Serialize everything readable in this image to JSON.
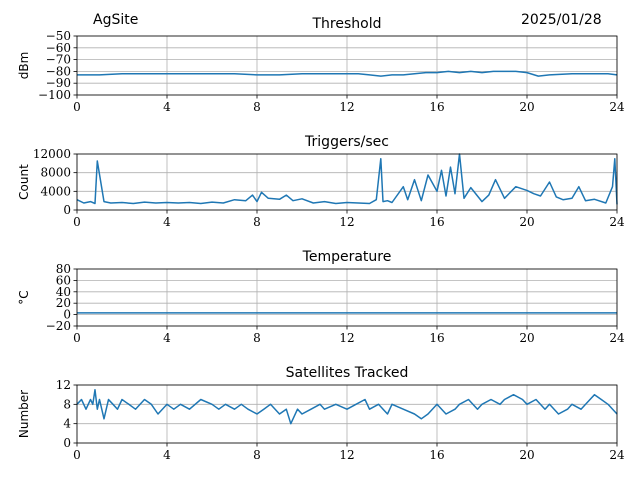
{
  "header": {
    "site": "AgSite",
    "date": "2025/01/28"
  },
  "style": {
    "line_color": "#1f77b4",
    "grid_color": "#b0b0b0"
  },
  "chart_data": [
    {
      "type": "line",
      "title": "Threshold",
      "ylabel": "dBm",
      "xlabel": "",
      "xlim": [
        0,
        24
      ],
      "ylim": [
        -100,
        -50
      ],
      "xticks": [
        "0",
        "4",
        "8",
        "12",
        "16",
        "20",
        "24"
      ],
      "yticks": [
        "−50",
        "−60",
        "−70",
        "−80",
        "−90",
        "−100"
      ],
      "ytick_values": [
        -50,
        -60,
        -70,
        -80,
        -90,
        -100
      ],
      "grid": true,
      "series": [
        {
          "x": [
            0,
            1,
            2,
            3,
            4,
            5,
            6,
            7,
            8,
            9,
            10,
            11,
            12,
            12.5,
            13,
            13.5,
            14,
            14.5,
            15,
            15.5,
            16,
            16.5,
            17,
            17.5,
            18,
            18.5,
            19,
            19.5,
            20,
            20.5,
            21,
            22,
            23,
            23.6,
            24
          ],
          "y": [
            -83,
            -83,
            -82,
            -82,
            -82,
            -82,
            -82,
            -82,
            -83,
            -83,
            -82,
            -82,
            -82,
            -82,
            -83,
            -84,
            -83,
            -83,
            -82,
            -81,
            -81,
            -80,
            -81,
            -80,
            -81,
            -80,
            -80,
            -80,
            -81,
            -84,
            -83,
            -82,
            -82,
            -82,
            -83
          ]
        }
      ]
    },
    {
      "type": "line",
      "title": "Triggers/sec",
      "ylabel": "Count",
      "xlabel": "",
      "xlim": [
        0,
        24
      ],
      "ylim": [
        0,
        12000
      ],
      "xticks": [
        "0",
        "4",
        "8",
        "12",
        "16",
        "20",
        "24"
      ],
      "yticks": [
        "0",
        "4000",
        "8000",
        "12000"
      ],
      "ytick_values": [
        0,
        4000,
        8000,
        12000
      ],
      "grid": true,
      "series": [
        {
          "x": [
            0,
            0.3,
            0.6,
            0.8,
            0.9,
            1.2,
            1.5,
            2,
            2.5,
            3,
            3.5,
            4,
            4.5,
            5,
            5.5,
            6,
            6.5,
            7,
            7.5,
            7.8,
            8,
            8.2,
            8.5,
            9,
            9.3,
            9.6,
            10,
            10.5,
            11,
            11.5,
            12,
            12.5,
            13,
            13.3,
            13.5,
            13.6,
            13.8,
            14,
            14.5,
            14.7,
            15,
            15.3,
            15.6,
            16,
            16.2,
            16.4,
            16.6,
            16.8,
            17,
            17.2,
            17.5,
            18,
            18.3,
            18.6,
            19,
            19.5,
            20,
            20.3,
            20.6,
            21,
            21.3,
            21.6,
            22,
            22.3,
            22.6,
            23,
            23.5,
            23.8,
            23.9,
            24
          ],
          "y": [
            2200,
            1500,
            1800,
            1400,
            10500,
            1800,
            1500,
            1600,
            1400,
            1700,
            1500,
            1600,
            1500,
            1600,
            1400,
            1700,
            1500,
            2200,
            2000,
            3200,
            1800,
            3800,
            2500,
            2300,
            3200,
            2000,
            2400,
            1500,
            1800,
            1400,
            1600,
            1500,
            1400,
            2200,
            11000,
            1800,
            2000,
            1600,
            5000,
            2200,
            6500,
            2000,
            7500,
            4000,
            8500,
            3000,
            9200,
            3500,
            12000,
            2500,
            4800,
            1800,
            3200,
            6500,
            2500,
            5000,
            4200,
            3500,
            3000,
            6000,
            2800,
            2200,
            2500,
            5000,
            2000,
            2300,
            1500,
            5000,
            11000,
            1200
          ]
        }
      ]
    },
    {
      "type": "line",
      "title": "Temperature",
      "ylabel": "°C",
      "xlabel": "",
      "xlim": [
        0,
        24
      ],
      "ylim": [
        -20,
        80
      ],
      "xticks": [
        "0",
        "4",
        "8",
        "12",
        "16",
        "20",
        "24"
      ],
      "yticks": [
        "−20",
        "0",
        "20",
        "40",
        "60",
        "80"
      ],
      "ytick_values": [
        -20,
        0,
        20,
        40,
        60,
        80
      ],
      "grid": true,
      "series": [
        {
          "x": [
            0,
            24
          ],
          "y": [
            3,
            3
          ]
        }
      ]
    },
    {
      "type": "line",
      "title": "Satellites Tracked",
      "ylabel": "Number",
      "xlabel": "",
      "xlim": [
        0,
        24
      ],
      "ylim": [
        0,
        12
      ],
      "xticks": [
        "0",
        "4",
        "8",
        "12",
        "16",
        "20",
        "24"
      ],
      "yticks": [
        "0",
        "4",
        "8",
        "12"
      ],
      "ytick_values": [
        0,
        4,
        8,
        12
      ],
      "grid": true,
      "series": [
        {
          "x": [
            0,
            0.2,
            0.4,
            0.6,
            0.7,
            0.8,
            0.9,
            1,
            1.2,
            1.4,
            1.6,
            1.8,
            2,
            2.3,
            2.6,
            3,
            3.3,
            3.6,
            4,
            4.3,
            4.6,
            5,
            5.5,
            6,
            6.3,
            6.6,
            7,
            7.3,
            7.6,
            8,
            8.3,
            8.6,
            9,
            9.3,
            9.5,
            9.8,
            10,
            10.4,
            10.8,
            11,
            11.5,
            12,
            12.4,
            12.8,
            13,
            13.4,
            13.8,
            14,
            14.5,
            15,
            15.3,
            15.6,
            16,
            16.4,
            16.8,
            17,
            17.4,
            17.8,
            18,
            18.4,
            18.8,
            19,
            19.4,
            19.8,
            20,
            20.4,
            20.8,
            21,
            21.4,
            21.8,
            22,
            22.4,
            22.8,
            23,
            23.3,
            23.6,
            24
          ],
          "y": [
            8,
            9,
            7,
            9,
            8,
            11,
            7,
            9,
            5,
            9,
            8,
            7,
            9,
            8,
            7,
            9,
            8,
            6,
            8,
            7,
            8,
            7,
            9,
            8,
            7,
            8,
            7,
            8,
            7,
            6,
            7,
            8,
            6,
            7,
            4,
            7,
            6,
            7,
            8,
            7,
            8,
            7,
            8,
            9,
            7,
            8,
            6,
            8,
            7,
            6,
            5,
            6,
            8,
            6,
            7,
            8,
            9,
            7,
            8,
            9,
            8,
            9,
            10,
            9,
            8,
            9,
            7,
            8,
            6,
            7,
            8,
            7,
            9,
            10,
            9,
            8,
            6
          ]
        }
      ]
    }
  ]
}
